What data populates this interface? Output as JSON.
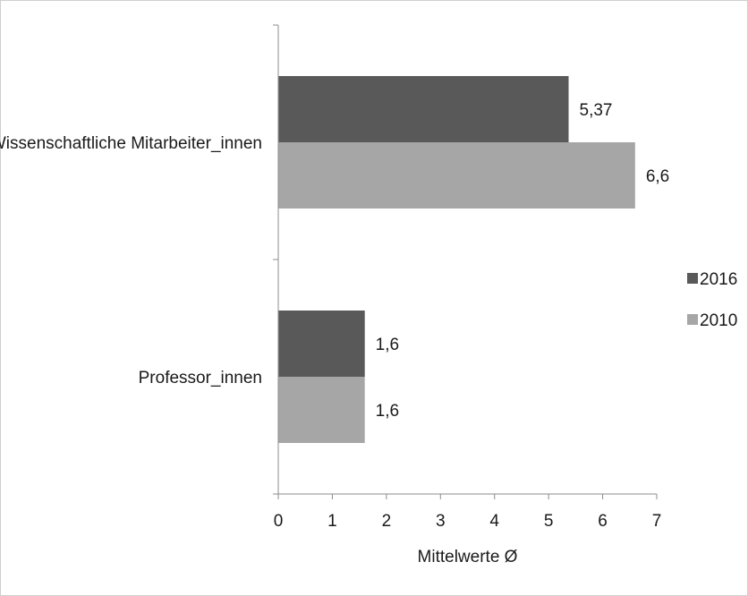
{
  "chart_data": {
    "type": "bar",
    "orientation": "horizontal",
    "categories": [
      "Professor_innen",
      "Wissenschaftliche Mitarbeiter_innen"
    ],
    "series": [
      {
        "name": "2016",
        "values": [
          1.6,
          5.37
        ],
        "labels": [
          "1,6",
          "5,37"
        ],
        "color": "#595959"
      },
      {
        "name": "2010",
        "values": [
          1.6,
          6.6
        ],
        "labels": [
          "1,6",
          "6,6"
        ],
        "color": "#a6a6a6"
      }
    ],
    "xlabel": "Mittelwerte Ø",
    "ylabel": "",
    "xlim": [
      0,
      7
    ],
    "xticks": [
      "0",
      "1",
      "2",
      "3",
      "4",
      "5",
      "6",
      "7"
    ],
    "grid": false,
    "legend_position": "right"
  }
}
